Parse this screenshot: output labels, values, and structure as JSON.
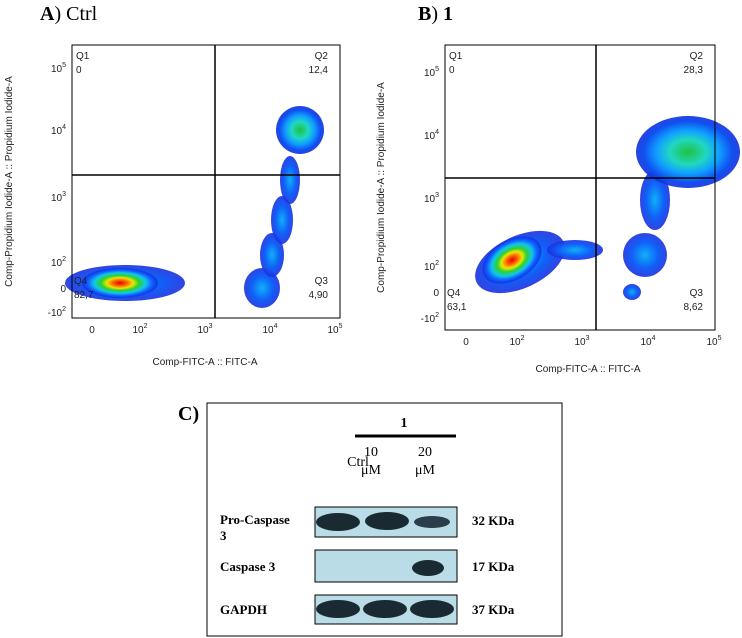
{
  "panels": [
    {
      "label": "A",
      "title": "Ctrl",
      "x_axis_label": "Comp-FITC-A :: FITC-A",
      "y_axis_label": "Comp-Propidium Iodide-A :: Propidium Iodide-A",
      "quadrants": [
        {
          "name": "Q1",
          "value": "0"
        },
        {
          "name": "Q2",
          "value": "12,4"
        },
        {
          "name": "Q3",
          "value": "4,90"
        },
        {
          "name": "Q4",
          "value": "82,7"
        }
      ],
      "xticks": [
        {
          "base": "0"
        },
        {
          "base": "10",
          "exp": "2"
        },
        {
          "base": "10",
          "exp": "3"
        },
        {
          "base": "10",
          "exp": "4"
        },
        {
          "base": "10",
          "exp": "5"
        }
      ],
      "yticks": [
        {
          "base": "10",
          "exp": "5"
        },
        {
          "base": "10",
          "exp": "4"
        },
        {
          "base": "10",
          "exp": "3"
        },
        {
          "base": "10",
          "exp": "2"
        },
        {
          "base": "0"
        },
        {
          "base": "-10",
          "exp": "2"
        }
      ]
    },
    {
      "label": "B",
      "title": "1",
      "x_axis_label": "Comp-FITC-A :: FITC-A",
      "y_axis_label": "Comp-Propidium Iodide-A :: Propidium Iodide-A",
      "quadrants": [
        {
          "name": "Q1",
          "value": "0"
        },
        {
          "name": "Q2",
          "value": "28,3"
        },
        {
          "name": "Q3",
          "value": "8,62"
        },
        {
          "name": "Q4",
          "value": "63,1"
        }
      ],
      "xticks": [
        {
          "base": "0"
        },
        {
          "base": "10",
          "exp": "2"
        },
        {
          "base": "10",
          "exp": "3"
        },
        {
          "base": "10",
          "exp": "4"
        },
        {
          "base": "10",
          "exp": "5"
        }
      ],
      "yticks": [
        {
          "base": "10",
          "exp": "5"
        },
        {
          "base": "10",
          "exp": "4"
        },
        {
          "base": "10",
          "exp": "3"
        },
        {
          "base": "10",
          "exp": "2"
        },
        {
          "base": "0"
        },
        {
          "base": "-10",
          "exp": "2"
        }
      ]
    }
  ],
  "blot": {
    "label": "C",
    "group_label": "1",
    "lanes": [
      {
        "dose": "Ctrl"
      },
      {
        "dose": "10",
        "unit": "μM"
      },
      {
        "dose": "20",
        "unit": "μM"
      }
    ],
    "rows": [
      {
        "name": "Pro-Caspase 3",
        "size": "32 KDa"
      },
      {
        "name": "Caspase 3",
        "size": "17 KDa"
      },
      {
        "name": "GAPDH",
        "size": "37 KDa"
      }
    ]
  }
}
